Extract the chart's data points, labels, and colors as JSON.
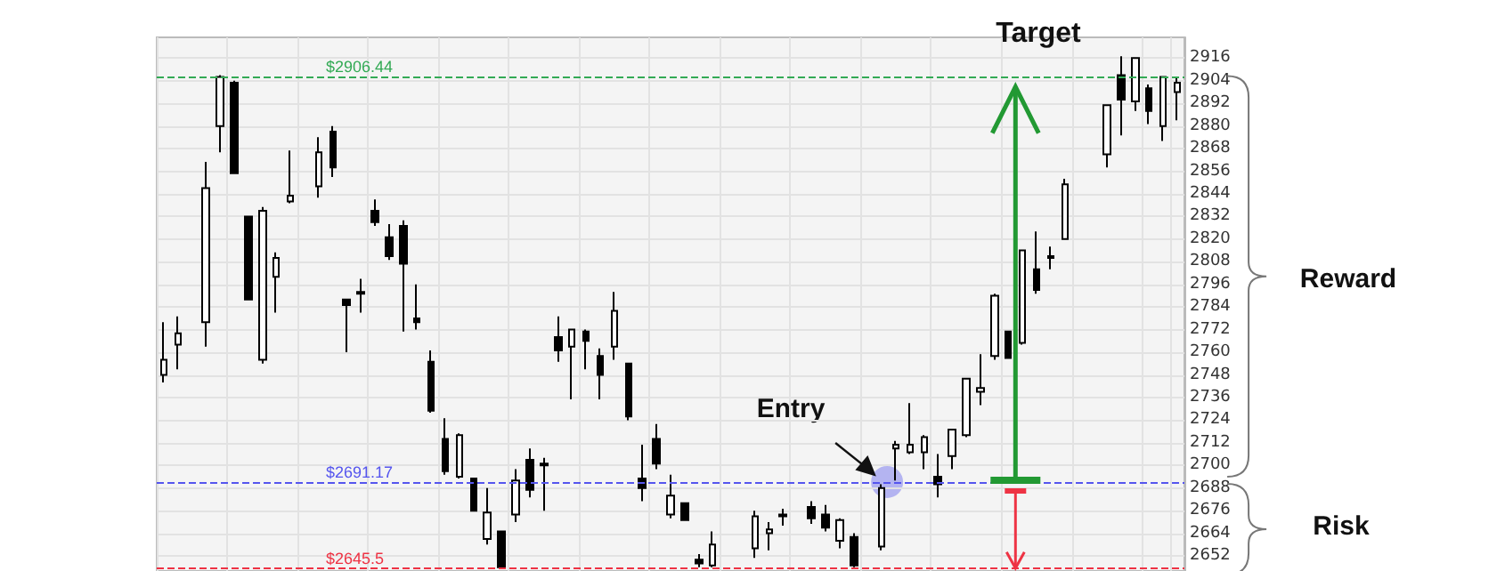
{
  "chart_data": {
    "type": "candlestick",
    "color": "#000000",
    "categories": [
      null,
      null,
      null,
      null,
      null,
      null,
      null,
      null,
      null,
      null,
      null,
      null,
      null,
      null,
      null,
      null,
      null,
      null,
      null,
      null,
      null,
      null,
      null,
      null,
      null,
      null,
      null,
      null,
      null,
      null,
      null,
      null,
      null,
      null,
      null,
      null,
      null,
      null,
      null,
      null,
      null,
      null,
      null,
      null,
      null,
      null,
      null,
      null,
      null,
      null,
      null,
      null,
      null,
      null,
      null,
      null,
      null,
      null,
      null,
      null,
      null,
      null,
      null,
      null,
      null,
      null,
      null,
      null,
      null,
      null,
      null,
      null,
      null
    ],
    "ohlc": [
      [
        2748,
        2776,
        2744,
        2756
      ],
      [
        2764,
        2779,
        2751,
        2770
      ],
      null,
      [
        2776,
        2861,
        2763,
        2847
      ],
      [
        2880,
        2907,
        2866,
        2906
      ],
      [
        2903,
        2904,
        2855,
        2855
      ],
      [
        2832,
        2832,
        2788,
        2788
      ],
      [
        2756,
        2837,
        2754,
        2835
      ],
      [
        2800,
        2813,
        2781,
        2810
      ],
      [
        2840,
        2867,
        2839,
        2843
      ],
      null,
      [
        2848,
        2874,
        2842,
        2866
      ],
      [
        2877,
        2880,
        2853,
        2858
      ],
      [
        2788,
        2788,
        2760,
        2785
      ],
      [
        2791,
        2799,
        2781,
        2792
      ],
      [
        2835,
        2841,
        2827,
        2829
      ],
      [
        2821,
        2828,
        2809,
        2811
      ],
      [
        2827,
        2830,
        2771,
        2807
      ],
      [
        2778,
        2796,
        2772,
        2776
      ],
      [
        2755,
        2761,
        2728,
        2729
      ],
      [
        2714,
        2725,
        2695,
        2697
      ],
      [
        2694,
        2717,
        2693,
        2716
      ],
      [
        2693,
        2693,
        2676,
        2676
      ],
      [
        2661,
        2688,
        2658,
        2675
      ],
      [
        2665,
        2665,
        2646,
        2646
      ],
      [
        2674,
        2698,
        2670,
        2692
      ],
      [
        2703,
        2709,
        2683,
        2687
      ],
      [
        2700,
        2704,
        2676,
        2701
      ],
      [
        2768,
        2779,
        2755,
        2761
      ],
      [
        2763,
        2772,
        2735,
        2772
      ],
      [
        2771,
        2772,
        2751,
        2766
      ],
      [
        2758,
        2762,
        2735,
        2748
      ],
      [
        2763,
        2792,
        2756,
        2782
      ],
      [
        2754,
        2754,
        2724,
        2726
      ],
      [
        2693,
        2711,
        2681,
        2688
      ],
      [
        2714,
        2722,
        2698,
        2701
      ],
      [
        2674,
        2695,
        2672,
        2684
      ],
      [
        2680,
        2680,
        2671,
        2671
      ],
      [
        2650,
        2653,
        2646,
        2648
      ],
      [
        2647,
        2665,
        2646,
        2658
      ],
      null,
      null,
      [
        2656,
        2676,
        2651,
        2673
      ],
      [
        2664,
        2670,
        2655,
        2666
      ],
      [
        2673,
        2677,
        2668,
        2674
      ],
      null,
      [
        2678,
        2681,
        2669,
        2672
      ],
      [
        2674,
        2679,
        2665,
        2667
      ],
      [
        2660,
        2672,
        2656,
        2671
      ],
      [
        2662,
        2664,
        2646,
        2647
      ],
      null,
      [
        2657,
        2690,
        2655,
        2688
      ],
      [
        2709,
        2713,
        2692,
        2711
      ],
      [
        2707,
        2733,
        2706,
        2711
      ],
      [
        2707,
        2716,
        2698,
        2715
      ],
      [
        2694,
        2706,
        2683,
        2690
      ],
      [
        2705,
        2719,
        2698,
        2719
      ],
      [
        2716,
        2746,
        2715,
        2746
      ],
      [
        2739,
        2759,
        2732,
        2741
      ],
      [
        2758,
        2791,
        2756,
        2790
      ],
      [
        2771,
        2771,
        2757,
        2757
      ],
      [
        2765,
        2814,
        2764,
        2814
      ],
      [
        2804,
        2824,
        2791,
        2793
      ],
      [
        2810,
        2816,
        2804,
        2811
      ],
      [
        2820,
        2852,
        2820,
        2849
      ],
      null,
      null,
      [
        2865,
        2891,
        2858,
        2891
      ],
      [
        2907,
        2917,
        2875,
        2894
      ],
      [
        2893,
        2916,
        2888,
        2916
      ],
      [
        2900,
        2902,
        2881,
        2888
      ],
      [
        2880,
        2906,
        2872,
        2906
      ],
      [
        2898,
        2906,
        2883,
        2903
      ]
    ],
    "ylim": [
      2644,
      2927
    ],
    "yticks": [
      2652,
      2664,
      2676,
      2688,
      2700,
      2712,
      2724,
      2736,
      2748,
      2760,
      2772,
      2784,
      2796,
      2808,
      2820,
      2832,
      2844,
      2856,
      2868,
      2880,
      2892,
      2904,
      2916
    ],
    "grid": true,
    "tick_labels": "y",
    "ref_lines": [
      {
        "axis": "y",
        "value": 2906.44,
        "label": "$2906.44",
        "color": "#33aa55",
        "line_style": "dashed"
      },
      {
        "axis": "y",
        "value": 2691.17,
        "label": "$2691.17",
        "color": "#5555ee",
        "line_style": "dashed"
      },
      {
        "axis": "y",
        "value": 2645.5,
        "label": "$2645.5",
        "color": "#ee3344",
        "line_style": "dashed"
      }
    ],
    "annotations": [
      "Target",
      "Entry",
      "Reward",
      "Risk"
    ]
  }
}
